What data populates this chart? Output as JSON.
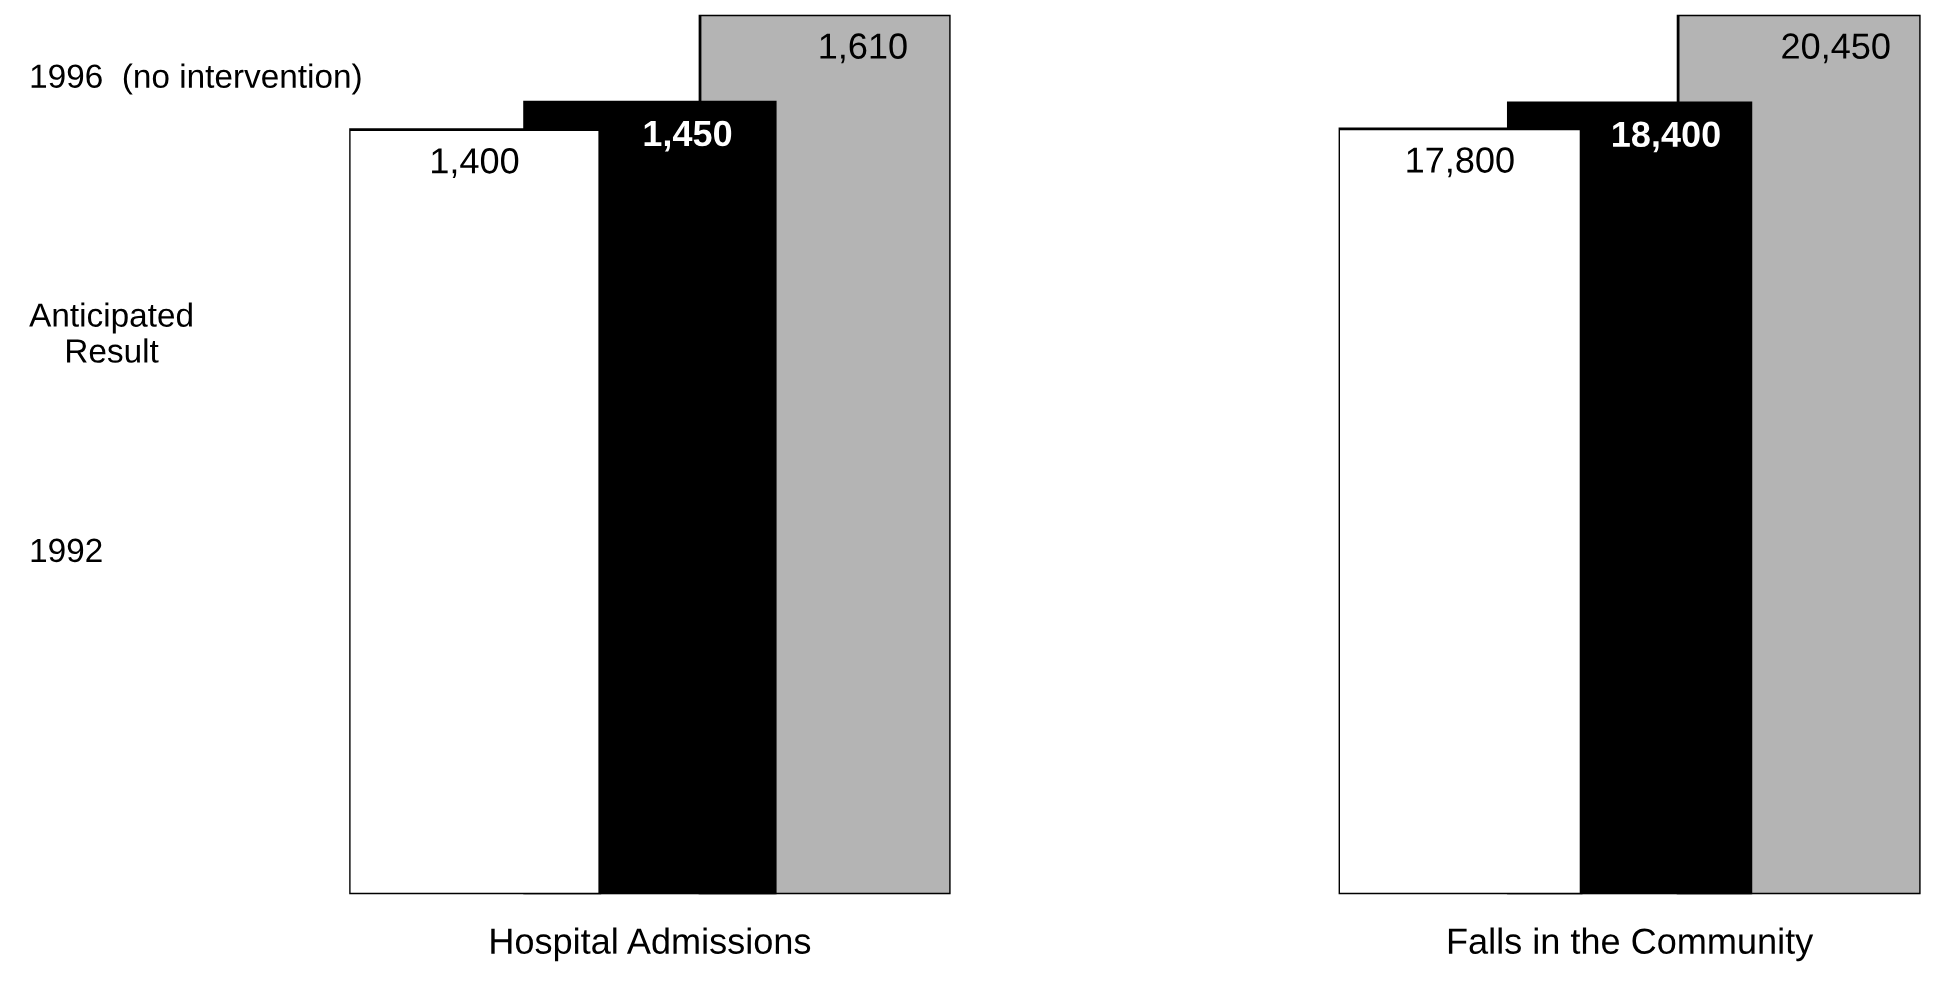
{
  "chart_data": [
    {
      "type": "bar",
      "xlabel": "Hospital Admissions",
      "categories": [
        null,
        null,
        null
      ],
      "values": [
        1400,
        1450,
        1610
      ],
      "value_labels": [
        "1,400",
        "1,450",
        "1,610"
      ],
      "colors": [
        "#ffffff",
        "#000000",
        "#b4b4b4"
      ],
      "annotations": [
        "1992",
        "Anticipated\nResult",
        "1996  (no intervention)"
      ],
      "tick_labels": false
    },
    {
      "type": "bar",
      "xlabel": "Falls in the Community",
      "categories": [
        null,
        null,
        null
      ],
      "values": [
        17800,
        18400,
        20450
      ],
      "value_labels": [
        "17,800",
        "18,400",
        "20,450"
      ],
      "colors": [
        "#ffffff",
        "#000000",
        "#b4b4b4"
      ],
      "tick_labels": false
    }
  ]
}
